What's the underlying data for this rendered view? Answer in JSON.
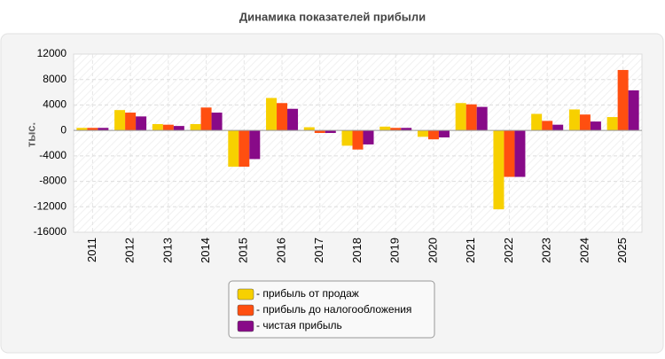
{
  "chart_data": {
    "type": "bar",
    "title": "Динамика показателей прибыли",
    "y_label": "тыс.",
    "categories": [
      "2011",
      "2012",
      "2013",
      "2014",
      "2015",
      "2016",
      "2017",
      "2018",
      "2019",
      "2020",
      "2021",
      "2022",
      "2023",
      "2024",
      "2025"
    ],
    "series": [
      {
        "name": "- прибыль от продаж",
        "color": "#f7d000",
        "values": [
          400,
          3200,
          1000,
          1000,
          -5700,
          5100,
          500,
          -2400,
          600,
          -1000,
          4300,
          -12400,
          2600,
          3300,
          2100
        ]
      },
      {
        "name": "- прибыль до налогообложения",
        "color": "#ff4f10",
        "values": [
          400,
          2800,
          900,
          3600,
          -5700,
          4300,
          -400,
          -3000,
          400,
          -1400,
          4100,
          -7300,
          1500,
          2500,
          9500
        ]
      },
      {
        "name": "- чистая прибыль",
        "color": "#880a88",
        "values": [
          400,
          2200,
          700,
          2800,
          -4500,
          3400,
          -400,
          -2200,
          400,
          -1100,
          3700,
          -7300,
          900,
          1400,
          6300
        ]
      }
    ],
    "ylim": [
      -16000,
      12000
    ],
    "yticks": [
      -16000,
      -12000,
      -8000,
      -4000,
      0,
      4000,
      8000,
      12000
    ],
    "grid": true
  }
}
